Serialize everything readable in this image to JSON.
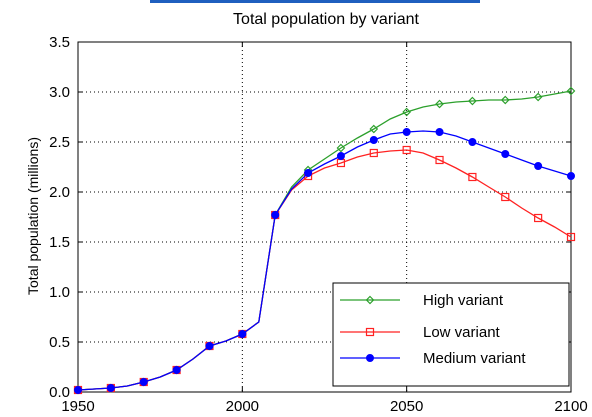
{
  "chart_data": {
    "type": "line",
    "title": "Total population by variant",
    "xlabel": "",
    "ylabel": "Total population (millions)",
    "xlim": [
      1950,
      2100
    ],
    "ylim": [
      0,
      3.5
    ],
    "x_ticks": [
      "1950",
      "2000",
      "2050",
      "2100"
    ],
    "y_ticks": [
      "0.0",
      "0.5",
      "1.0",
      "1.5",
      "2.0",
      "2.5",
      "3.0",
      "3.5"
    ],
    "grid": "dotted, at major ticks",
    "legend_position": "bottom-right",
    "x": [
      1950,
      1955,
      1960,
      1965,
      1970,
      1975,
      1980,
      1985,
      1990,
      1995,
      2000,
      2005,
      2010,
      2015,
      2020,
      2025,
      2030,
      2035,
      2040,
      2045,
      2050,
      2055,
      2060,
      2065,
      2070,
      2075,
      2080,
      2085,
      2090,
      2095,
      2100
    ],
    "series": [
      {
        "name": "High variant",
        "color": "#2ca02c",
        "marker": "diamond",
        "values": [
          0.02,
          0.03,
          0.04,
          0.06,
          0.1,
          0.15,
          0.22,
          0.33,
          0.46,
          0.51,
          0.58,
          0.7,
          1.77,
          2.05,
          2.22,
          2.33,
          2.44,
          2.54,
          2.63,
          2.73,
          2.8,
          2.85,
          2.88,
          2.9,
          2.91,
          2.92,
          2.92,
          2.93,
          2.95,
          2.98,
          3.01
        ]
      },
      {
        "name": "Low variant",
        "color": "#ff2222",
        "marker": "square",
        "values": [
          0.02,
          0.03,
          0.04,
          0.06,
          0.1,
          0.15,
          0.22,
          0.33,
          0.46,
          0.51,
          0.58,
          0.7,
          1.77,
          2.02,
          2.16,
          2.24,
          2.29,
          2.35,
          2.39,
          2.41,
          2.42,
          2.39,
          2.32,
          2.24,
          2.15,
          2.05,
          1.95,
          1.84,
          1.74,
          1.65,
          1.55
        ]
      },
      {
        "name": "Medium variant",
        "color": "#0000ff",
        "marker": "circle",
        "values": [
          0.02,
          0.03,
          0.04,
          0.06,
          0.1,
          0.15,
          0.22,
          0.33,
          0.46,
          0.51,
          0.58,
          0.7,
          1.77,
          2.03,
          2.19,
          2.28,
          2.36,
          2.45,
          2.52,
          2.58,
          2.6,
          2.61,
          2.6,
          2.56,
          2.5,
          2.44,
          2.38,
          2.32,
          2.26,
          2.21,
          2.16
        ]
      }
    ],
    "marker_every": 2
  }
}
